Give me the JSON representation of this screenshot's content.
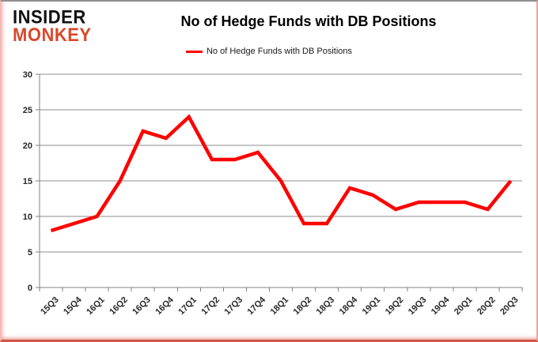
{
  "logo": {
    "line1": "INSIDER",
    "line2": "MONKEY",
    "accent_color": "#d9472b"
  },
  "header": {
    "title": "No of Hedge Funds with DB Positions"
  },
  "legend": {
    "label": "No of Hedge Funds with DB Positions",
    "line_color": "#ff0000"
  },
  "chart_data": {
    "type": "line",
    "title": "No of Hedge Funds with DB Positions",
    "categories": [
      "15Q3",
      "15Q4",
      "16Q1",
      "16Q2",
      "16Q3",
      "16Q4",
      "17Q1",
      "17Q2",
      "17Q3",
      "17Q4",
      "18Q1",
      "18Q2",
      "18Q3",
      "18Q4",
      "19Q1",
      "19Q2",
      "19Q3",
      "19Q4",
      "20Q1",
      "20Q2",
      "20Q3"
    ],
    "series": [
      {
        "name": "No of Hedge Funds with DB Positions",
        "color": "#ff0000",
        "values": [
          8,
          9,
          10,
          15,
          22,
          21,
          24,
          18,
          18,
          19,
          15,
          9,
          9,
          14,
          13,
          11,
          12,
          12,
          12,
          11,
          15
        ]
      }
    ],
    "xlabel": "",
    "ylabel": "",
    "ylim": [
      0,
      30
    ],
    "ytick_step": 5,
    "grid": true,
    "legend_position": "top",
    "gridline_color": "#8c8c8c"
  }
}
